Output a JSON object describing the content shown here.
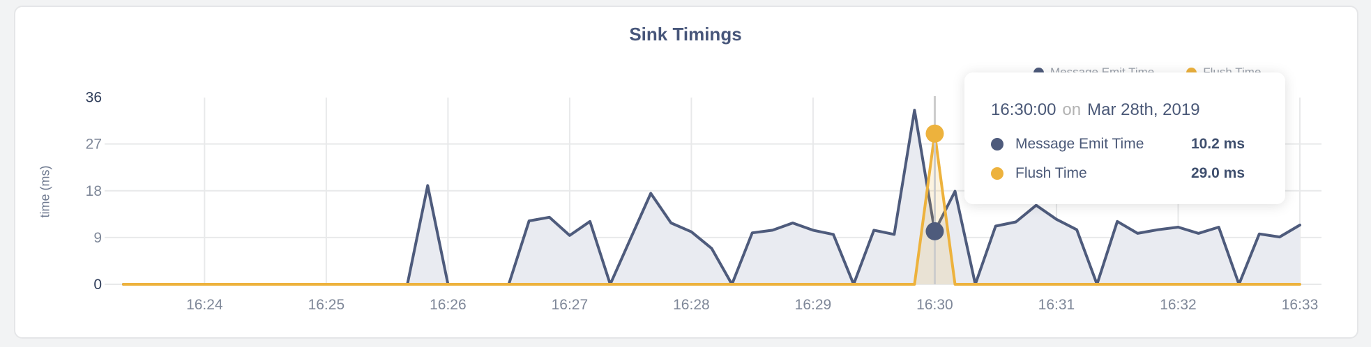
{
  "title": "Sink Timings",
  "y_axis": {
    "label": "time (ms)",
    "ticks": [
      0,
      9,
      18,
      27,
      36
    ],
    "emphasized_ticks": [
      0,
      36
    ]
  },
  "x_axis": {
    "ticks": [
      "16:24",
      "16:25",
      "16:26",
      "16:27",
      "16:28",
      "16:29",
      "16:30",
      "16:31",
      "16:32",
      "16:33"
    ]
  },
  "legend": {
    "items": [
      {
        "label": "Message Emit Time",
        "color": "#4e5b7c"
      },
      {
        "label": "Flush Time",
        "color": "#edb23d"
      }
    ]
  },
  "tooltip": {
    "time": "16:30:00",
    "separator": "on",
    "date": "Mar 28th, 2019",
    "rows": [
      {
        "label": "Message Emit Time",
        "value": "10.2 ms",
        "color": "#4e5b7c"
      },
      {
        "label": "Flush Time",
        "value": "29.0 ms",
        "color": "#edb23d"
      }
    ]
  },
  "chart_data": {
    "type": "area",
    "title": "Sink Timings",
    "ylabel": "time (ms)",
    "ylim": [
      0,
      36
    ],
    "yticks": [
      0,
      9,
      18,
      27,
      36
    ],
    "grid": true,
    "legend_position": "top-right",
    "x": [
      "16:23:20",
      "16:23:30",
      "16:23:40",
      "16:23:50",
      "16:24:00",
      "16:24:10",
      "16:24:20",
      "16:24:30",
      "16:24:40",
      "16:24:50",
      "16:25:00",
      "16:25:10",
      "16:25:20",
      "16:25:30",
      "16:25:40",
      "16:25:50",
      "16:26:00",
      "16:26:10",
      "16:26:20",
      "16:26:30",
      "16:26:40",
      "16:26:50",
      "16:27:00",
      "16:27:10",
      "16:27:20",
      "16:27:30",
      "16:27:40",
      "16:27:50",
      "16:28:00",
      "16:28:10",
      "16:28:20",
      "16:28:30",
      "16:28:40",
      "16:28:50",
      "16:29:00",
      "16:29:10",
      "16:29:20",
      "16:29:30",
      "16:29:40",
      "16:29:50",
      "16:30:00",
      "16:30:10",
      "16:30:20",
      "16:30:30",
      "16:30:40",
      "16:30:50",
      "16:31:00",
      "16:31:10",
      "16:31:20",
      "16:31:30",
      "16:31:40",
      "16:31:50",
      "16:32:00",
      "16:32:10",
      "16:32:20",
      "16:32:30",
      "16:32:40",
      "16:32:50",
      "16:33:00"
    ],
    "series": [
      {
        "name": "Message Emit Time",
        "color": "#4e5b7c",
        "fill": "#e9ebf1",
        "values": [
          0,
          0,
          0,
          0,
          0,
          0,
          0,
          0,
          0,
          0,
          0,
          0,
          0,
          0,
          0,
          19,
          0,
          0,
          0,
          0,
          12.2,
          12.9,
          9.4,
          12.1,
          0,
          8.8,
          17.5,
          11.8,
          10.1,
          6.9,
          0,
          9.9,
          10.4,
          11.8,
          10.4,
          9.6,
          0,
          10.4,
          9.6,
          33.5,
          10.2,
          17.9,
          0,
          11.2,
          12,
          15.2,
          12.5,
          10.5,
          0,
          12.1,
          9.8,
          10.5,
          11,
          9.8,
          11,
          0,
          9.7,
          9.1,
          11.4
        ]
      },
      {
        "name": "Flush Time",
        "color": "#edb23d",
        "fill": "rgba(237,178,61,0.16)",
        "values": [
          0,
          0,
          0,
          0,
          0,
          0,
          0,
          0,
          0,
          0,
          0,
          0,
          0,
          0,
          0,
          0,
          0,
          0,
          0,
          0,
          0,
          0,
          0,
          0,
          0,
          0,
          0,
          0,
          0,
          0,
          0,
          0,
          0,
          0,
          0,
          0,
          0,
          0,
          0,
          0,
          29,
          0,
          0,
          0,
          0,
          0,
          0,
          0,
          0,
          0,
          0,
          0,
          0,
          0,
          0,
          0,
          0,
          0,
          0
        ]
      }
    ],
    "hover": {
      "time": "16:30:00",
      "values": [
        10.2,
        29.0
      ],
      "line_color": "#cccccc"
    }
  },
  "colors": {
    "navy": "#4e5b7c",
    "yellow": "#edb23d",
    "grid": "#e8e9ea",
    "tick_text": "#7e8798",
    "tick_text_emphasized": "#2e3c59",
    "title_text": "#47567a",
    "card_background": "#ffffff",
    "page_background": "#f2f3f4"
  }
}
